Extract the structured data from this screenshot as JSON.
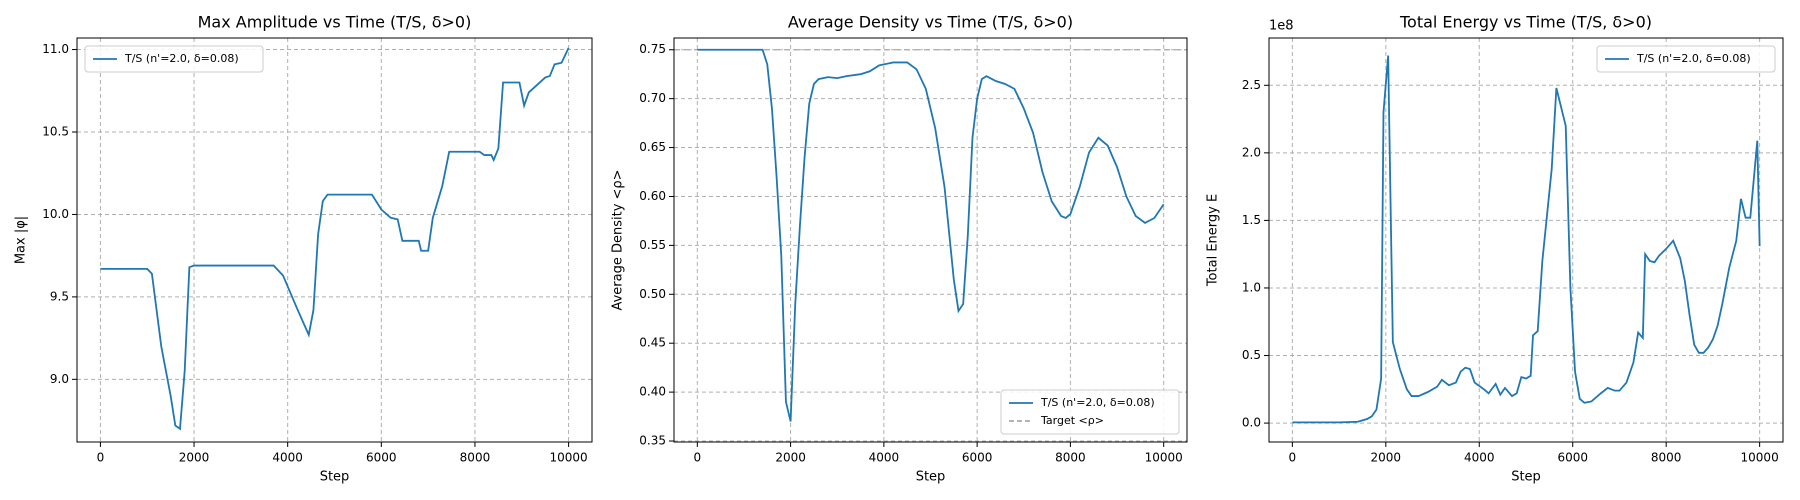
{
  "chart_data": [
    {
      "type": "line",
      "title": "Max Amplitude vs Time (T/S, δ>0)",
      "xlabel": "Step",
      "ylabel": "Max |φ|",
      "xlim": [
        -500,
        10500
      ],
      "xticks": [
        0,
        2000,
        4000,
        6000,
        8000,
        10000
      ],
      "ylim": [
        8.62,
        11.07
      ],
      "yticks": [
        {
          "value": 9,
          "label": "9.0"
        },
        9.5,
        {
          "value": 10,
          "label": "10.0"
        },
        10.5,
        {
          "value": 11,
          "label": "11.0"
        }
      ],
      "grid": true,
      "legend": "upper left",
      "x": [
        0,
        1000,
        1100,
        1300,
        1500,
        1600,
        1700,
        1800,
        1900,
        2000,
        3700,
        3900,
        4200,
        4450,
        4550,
        4650,
        4750,
        4850,
        5800,
        6000,
        6200,
        6350,
        6450,
        6800,
        6850,
        7000,
        7100,
        7300,
        7450,
        8100,
        8200,
        8350,
        8400,
        8500,
        8600,
        8950,
        9050,
        9150,
        9500,
        9600,
        9700,
        9850,
        10000
      ],
      "series": [
        {
          "name": "T/S (n'=2.0, δ=0.08)",
          "color": "#1f77b4",
          "values": [
            9.67,
            9.67,
            9.64,
            9.2,
            8.9,
            8.72,
            8.7,
            9.05,
            9.68,
            9.69,
            9.69,
            9.63,
            9.43,
            9.27,
            9.42,
            9.88,
            10.08,
            10.12,
            10.12,
            10.03,
            9.98,
            9.97,
            9.84,
            9.84,
            9.78,
            9.78,
            9.98,
            10.17,
            10.38,
            10.38,
            10.36,
            10.36,
            10.33,
            10.4,
            10.8,
            10.8,
            10.66,
            10.74,
            10.83,
            10.84,
            10.91,
            10.92,
            11.01
          ]
        }
      ]
    },
    {
      "type": "line",
      "title": "Average Density vs Time (T/S, δ>0)",
      "xlabel": "Step",
      "ylabel": "Average Density <ρ>",
      "xlim": [
        -500,
        10500
      ],
      "xticks": [
        0,
        2000,
        4000,
        6000,
        8000,
        10000
      ],
      "ylim": [
        0.349,
        0.762
      ],
      "yticks": [
        0.35,
        {
          "value": 0.4,
          "label": "0.40"
        },
        0.45,
        {
          "value": 0.5,
          "label": "0.50"
        },
        0.55,
        {
          "value": 0.6,
          "label": "0.60"
        },
        0.65,
        {
          "value": 0.7,
          "label": "0.70"
        },
        0.75
      ],
      "grid": true,
      "legend": "lower right",
      "x": [
        0,
        1400,
        1500,
        1600,
        1700,
        1800,
        1900,
        2000,
        2100,
        2200,
        2300,
        2400,
        2500,
        2600,
        2800,
        3000,
        3200,
        3500,
        3700,
        3900,
        4200,
        4500,
        4700,
        4900,
        5100,
        5300,
        5500,
        5600,
        5700,
        5800,
        5900,
        6000,
        6100,
        6200,
        6400,
        6600,
        6800,
        7000,
        7200,
        7400,
        7600,
        7800,
        7900,
        8000,
        8200,
        8400,
        8600,
        8800,
        9000,
        9200,
        9400,
        9600,
        9800,
        10000
      ],
      "series": [
        {
          "name": "T/S (n'=2.0, δ=0.08)",
          "color": "#1f77b4",
          "values": [
            0.75,
            0.75,
            0.735,
            0.69,
            0.62,
            0.54,
            0.39,
            0.37,
            0.49,
            0.57,
            0.64,
            0.695,
            0.715,
            0.72,
            0.722,
            0.721,
            0.723,
            0.725,
            0.728,
            0.734,
            0.737,
            0.737,
            0.73,
            0.71,
            0.67,
            0.61,
            0.515,
            0.483,
            0.49,
            0.56,
            0.66,
            0.7,
            0.72,
            0.723,
            0.718,
            0.715,
            0.71,
            0.69,
            0.665,
            0.625,
            0.595,
            0.58,
            0.578,
            0.582,
            0.61,
            0.645,
            0.66,
            0.652,
            0.63,
            0.6,
            0.58,
            0.573,
            0.578,
            0.592
          ]
        }
      ],
      "hlines": [
        {
          "name": "Target <ρ>",
          "value": 0.75,
          "color": "#aaaaaa",
          "dashed": true
        }
      ]
    },
    {
      "type": "line",
      "title": "Total Energy vs Time (T/S, δ>0)",
      "xlabel": "Step",
      "ylabel": "Total Energy E",
      "y_offset_label": "1e8",
      "xlim": [
        -500,
        10500
      ],
      "xticks": [
        0,
        2000,
        4000,
        6000,
        8000,
        10000
      ],
      "ylim": [
        -0.14,
        2.85
      ],
      "yticks": [
        {
          "value": 0,
          "label": "0.0"
        },
        0.5,
        {
          "value": 1,
          "label": "1.0"
        },
        1.5,
        {
          "value": 2,
          "label": "2.0"
        },
        2.5
      ],
      "grid": true,
      "legend": "upper right",
      "x": [
        0,
        1000,
        1400,
        1600,
        1700,
        1800,
        1900,
        1950,
        2050,
        2150,
        2300,
        2450,
        2550,
        2700,
        2900,
        3100,
        3200,
        3350,
        3500,
        3600,
        3700,
        3800,
        3900,
        4100,
        4200,
        4350,
        4450,
        4550,
        4700,
        4800,
        4900,
        5000,
        5100,
        5150,
        5250,
        5350,
        5550,
        5650,
        5850,
        5950,
        6050,
        6150,
        6250,
        6400,
        6600,
        6750,
        6900,
        7000,
        7150,
        7300,
        7400,
        7500,
        7550,
        7650,
        7750,
        7850,
        8000,
        8150,
        8300,
        8400,
        8500,
        8600,
        8700,
        8800,
        8900,
        9000,
        9100,
        9200,
        9350,
        9500,
        9600,
        9700,
        9800,
        9950,
        10000
      ],
      "series": [
        {
          "name": "T/S (n'=2.0, δ=0.08)",
          "color": "#1f77b4",
          "values": [
            0.005,
            0.005,
            0.01,
            0.03,
            0.05,
            0.1,
            0.33,
            2.3,
            2.72,
            0.6,
            0.4,
            0.25,
            0.2,
            0.2,
            0.23,
            0.27,
            0.32,
            0.28,
            0.3,
            0.38,
            0.41,
            0.4,
            0.3,
            0.25,
            0.22,
            0.29,
            0.21,
            0.26,
            0.2,
            0.22,
            0.34,
            0.33,
            0.35,
            0.65,
            0.68,
            1.2,
            1.88,
            2.48,
            2.2,
            1.0,
            0.38,
            0.18,
            0.15,
            0.16,
            0.22,
            0.26,
            0.24,
            0.24,
            0.3,
            0.45,
            0.67,
            0.63,
            1.25,
            1.2,
            1.19,
            1.24,
            1.29,
            1.35,
            1.22,
            1.05,
            0.8,
            0.58,
            0.52,
            0.52,
            0.56,
            0.62,
            0.72,
            0.88,
            1.15,
            1.35,
            1.66,
            1.52,
            1.52,
            2.09,
            1.31
          ]
        }
      ]
    }
  ]
}
